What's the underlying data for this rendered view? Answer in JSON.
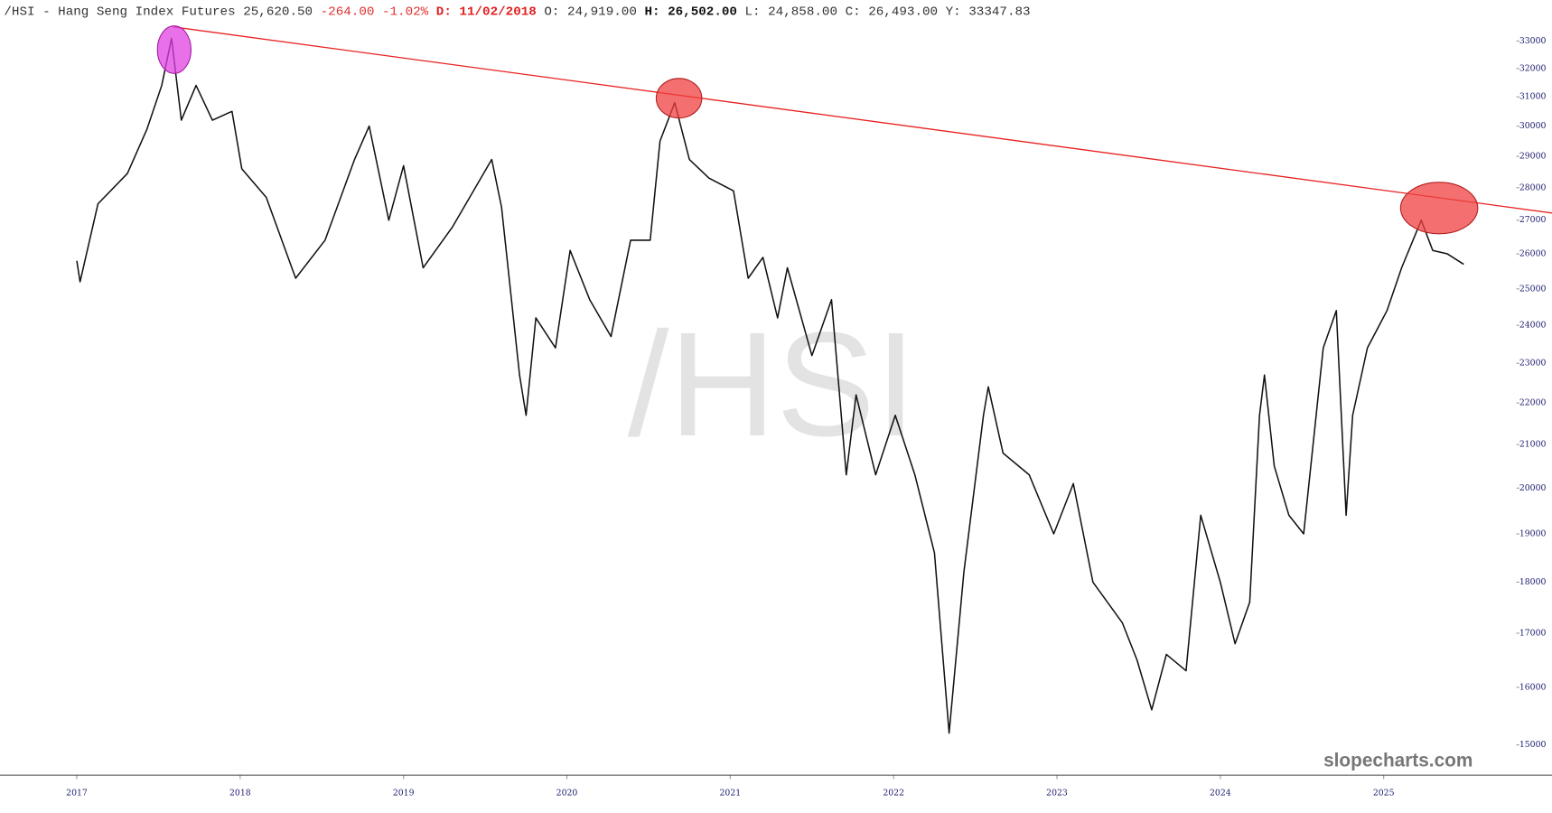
{
  "chart_data": {
    "type": "line",
    "header": {
      "symbol": "/HSI - Hang Seng Index Futures",
      "price": "25,620.50",
      "change": "-264.00",
      "change_pct": "-1.02%",
      "date": "D: 11/02/2018",
      "open": "O: 24,919.00",
      "high": "H: 26,502.00",
      "low": "L: 24,858.00",
      "close": "C: 26,493.00",
      "y": "Y:  33347.83"
    },
    "watermark": "/HSI",
    "brand": "slopecharts.com",
    "log_scale": true,
    "color": "#111111",
    "x": [
      2017.0,
      2017.02,
      2017.13,
      2017.31,
      2017.43,
      2017.52,
      2017.58,
      2017.64,
      2017.73,
      2017.83,
      2017.95,
      2018.01,
      2018.16,
      2018.34,
      2018.52,
      2018.7,
      2018.79,
      2018.91,
      2019.0,
      2019.12,
      2019.3,
      2019.54,
      2019.6,
      2019.71,
      2019.75,
      2019.81,
      2019.93,
      2020.02,
      2020.14,
      2020.27,
      2020.39,
      2020.51,
      2020.57,
      2020.66,
      2020.75,
      2020.87,
      2021.02,
      2021.11,
      2021.2,
      2021.29,
      2021.35,
      2021.5,
      2021.62,
      2021.71,
      2021.77,
      2021.89,
      2022.01,
      2022.13,
      2022.25,
      2022.34,
      2022.43,
      2022.55,
      2022.58,
      2022.67,
      2022.83,
      2022.98,
      2023.1,
      2023.22,
      2023.4,
      2023.49,
      2023.58,
      2023.67,
      2023.79,
      2023.88,
      2024.0,
      2024.09,
      2024.18,
      2024.24,
      2024.27,
      2024.33,
      2024.42,
      2024.51,
      2024.63,
      2024.71,
      2024.77,
      2024.81,
      2024.9,
      2025.02,
      2025.11,
      2025.23,
      2025.3,
      2025.39,
      2025.49
    ],
    "values": [
      25800,
      25200,
      27500,
      28450,
      29900,
      31400,
      33100,
      30200,
      31400,
      30200,
      30500,
      28600,
      27700,
      25300,
      26400,
      28900,
      30000,
      27000,
      28700,
      25600,
      26800,
      28900,
      27400,
      22700,
      21700,
      24200,
      23400,
      26100,
      24700,
      23700,
      26400,
      26400,
      29500,
      30800,
      28900,
      28300,
      27900,
      25300,
      25900,
      24200,
      25600,
      23200,
      24700,
      20300,
      22200,
      20300,
      21700,
      20300,
      18600,
      15200,
      18200,
      21700,
      22400,
      20800,
      20300,
      19000,
      20100,
      18000,
      17200,
      16500,
      15600,
      16600,
      16300,
      19400,
      18000,
      16800,
      17600,
      21700,
      22700,
      20500,
      19400,
      19000,
      23400,
      24400,
      19400,
      21700,
      23400,
      24400,
      25600,
      27000,
      26100,
      26000,
      25700
    ],
    "xlim": [
      2016.53,
      2025.8
    ],
    "xticks": [
      2017,
      2018,
      2019,
      2020,
      2021,
      2022,
      2023,
      2024,
      2025
    ],
    "ylim": [
      14500,
      33600
    ],
    "yticks": [
      15000,
      16000,
      17000,
      18000,
      19000,
      20000,
      21000,
      22000,
      23000,
      24000,
      25000,
      26000,
      27000,
      28000,
      29000,
      30000,
      31000,
      32000,
      33000
    ]
  }
}
